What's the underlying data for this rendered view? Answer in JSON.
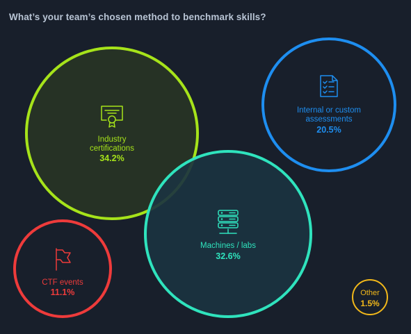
{
  "title": "What’s your team’s chosen method to benchmark skills?",
  "chart_data": {
    "type": "bubble",
    "title": "What’s your team’s chosen method to benchmark skills?",
    "unit": "%",
    "items": [
      {
        "key": "industry",
        "label_lines": [
          "Industry",
          "certifications"
        ],
        "value": 34.2,
        "value_label": "34.2%",
        "color": "#a6e31a",
        "fill": "#283425",
        "icon": "certificate-icon"
      },
      {
        "key": "machines",
        "label_lines": [
          "Machines / labs"
        ],
        "value": 32.6,
        "value_label": "32.6%",
        "color": "#2fe3bd",
        "fill": "#1b3340",
        "icon": "server-icon"
      },
      {
        "key": "internal",
        "label_lines": [
          "Internal or custom",
          "assessments"
        ],
        "value": 20.5,
        "value_label": "20.5%",
        "color": "#1e8ef0",
        "fill": "none",
        "icon": "checklist-icon"
      },
      {
        "key": "ctf",
        "label_lines": [
          "CTF events"
        ],
        "value": 11.1,
        "value_label": "11.1%",
        "color": "#ee3b3b",
        "fill": "none",
        "icon": "flag-icon"
      },
      {
        "key": "other",
        "label_lines": [
          "Other"
        ],
        "value": 1.5,
        "value_label": "1.5%",
        "color": "#f2b81a",
        "fill": "none",
        "icon": ""
      }
    ]
  }
}
